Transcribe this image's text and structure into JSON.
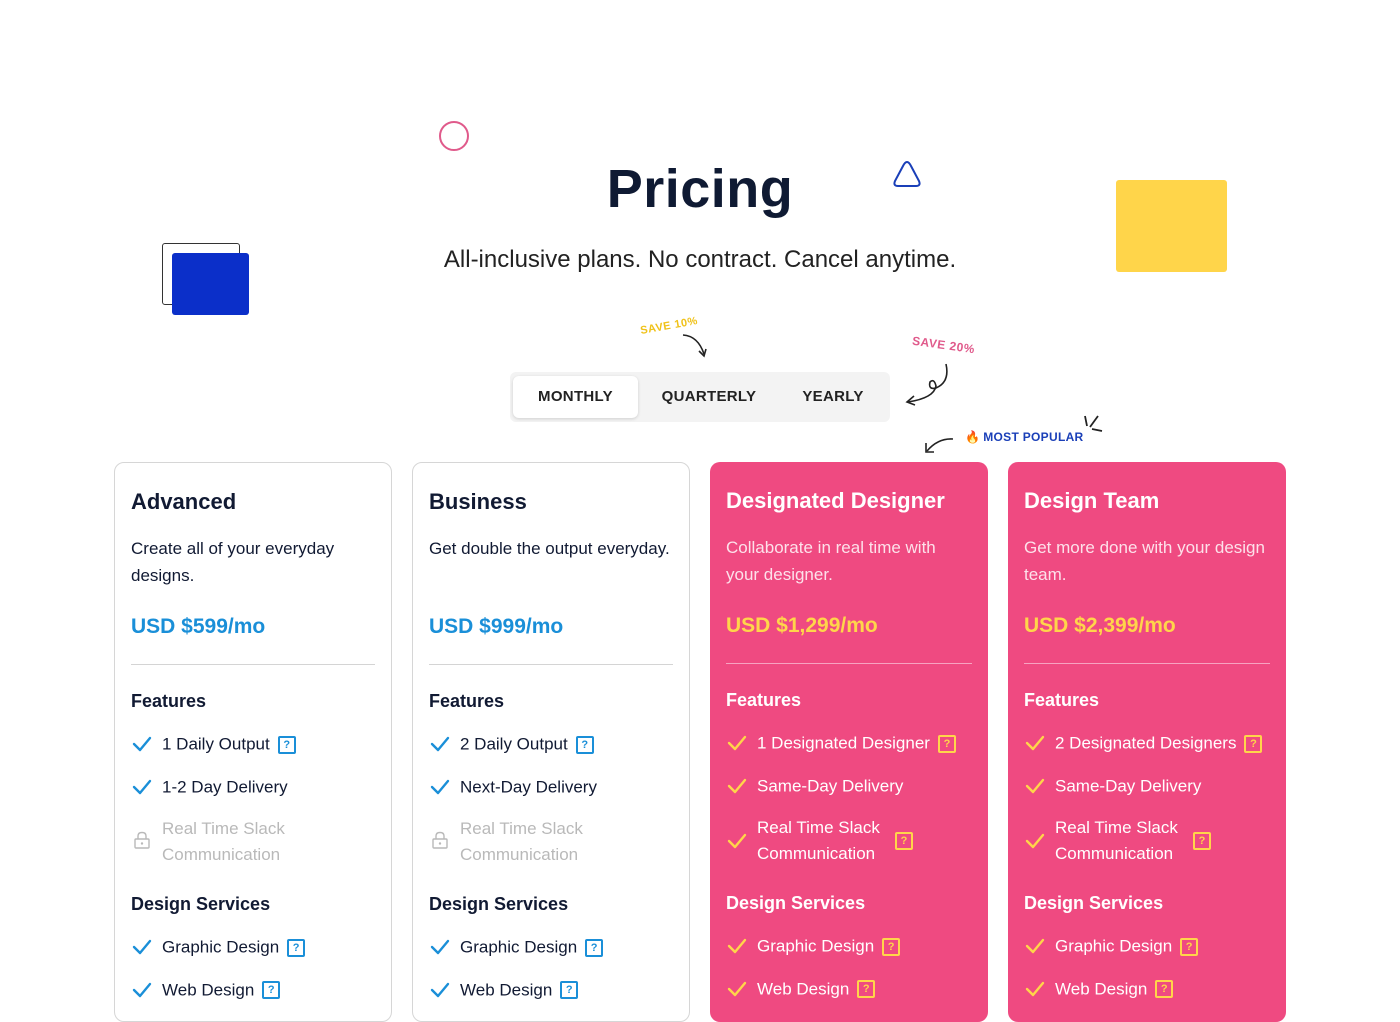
{
  "header": {
    "title": "Pricing",
    "subtitle": "All-inclusive plans. No contract. Cancel anytime."
  },
  "notes": {
    "save_quarterly": "SAVE 10%",
    "save_yearly": "SAVE 20%",
    "most_popular": "MOST POPULAR"
  },
  "billing": {
    "tabs": [
      {
        "label": "MONTHLY",
        "selected": true
      },
      {
        "label": "QUARTERLY",
        "selected": false
      },
      {
        "label": "YEARLY",
        "selected": false
      }
    ]
  },
  "colors": {
    "pink": "#ef4a81",
    "yellow": "#ffd54a",
    "blue": "#0b2fc9",
    "price_blue": "#1a8fd8"
  },
  "icons": [
    "check-icon",
    "help-icon",
    "lock-icon",
    "flame-icon"
  ],
  "plans": [
    {
      "name": "Advanced",
      "description": "Create all of your everyday designs.",
      "price": "USD $599/mo",
      "features_title": "Features",
      "features": [
        "1 Daily Output",
        "1-2 Day Delivery",
        "Real Time Slack Communication"
      ],
      "services_title": "Design Services",
      "services": [
        "Graphic Design",
        "Web Design"
      ]
    },
    {
      "name": "Business",
      "description": "Get double the output everyday.",
      "price": "USD $999/mo",
      "features_title": "Features",
      "features": [
        "2 Daily Output",
        "Next-Day Delivery",
        "Real Time Slack Communication"
      ],
      "services_title": "Design Services",
      "services": [
        "Graphic Design",
        "Web Design"
      ]
    },
    {
      "name": "Designated Designer",
      "description": "Collaborate in real time with your designer.",
      "price": "USD $1,299/mo",
      "features_title": "Features",
      "features": [
        "1 Designated Designer",
        "Same-Day Delivery",
        "Real Time Slack Communication"
      ],
      "services_title": "Design Services",
      "services": [
        "Graphic Design",
        "Web Design"
      ]
    },
    {
      "name": "Design Team",
      "description": "Get more done with your design team.",
      "price": "USD $2,399/mo",
      "features_title": "Features",
      "features": [
        "2 Designated Designers",
        "Same-Day Delivery",
        "Real Time Slack Communication"
      ],
      "services_title": "Design Services",
      "services": [
        "Graphic Design",
        "Web Design"
      ]
    }
  ]
}
